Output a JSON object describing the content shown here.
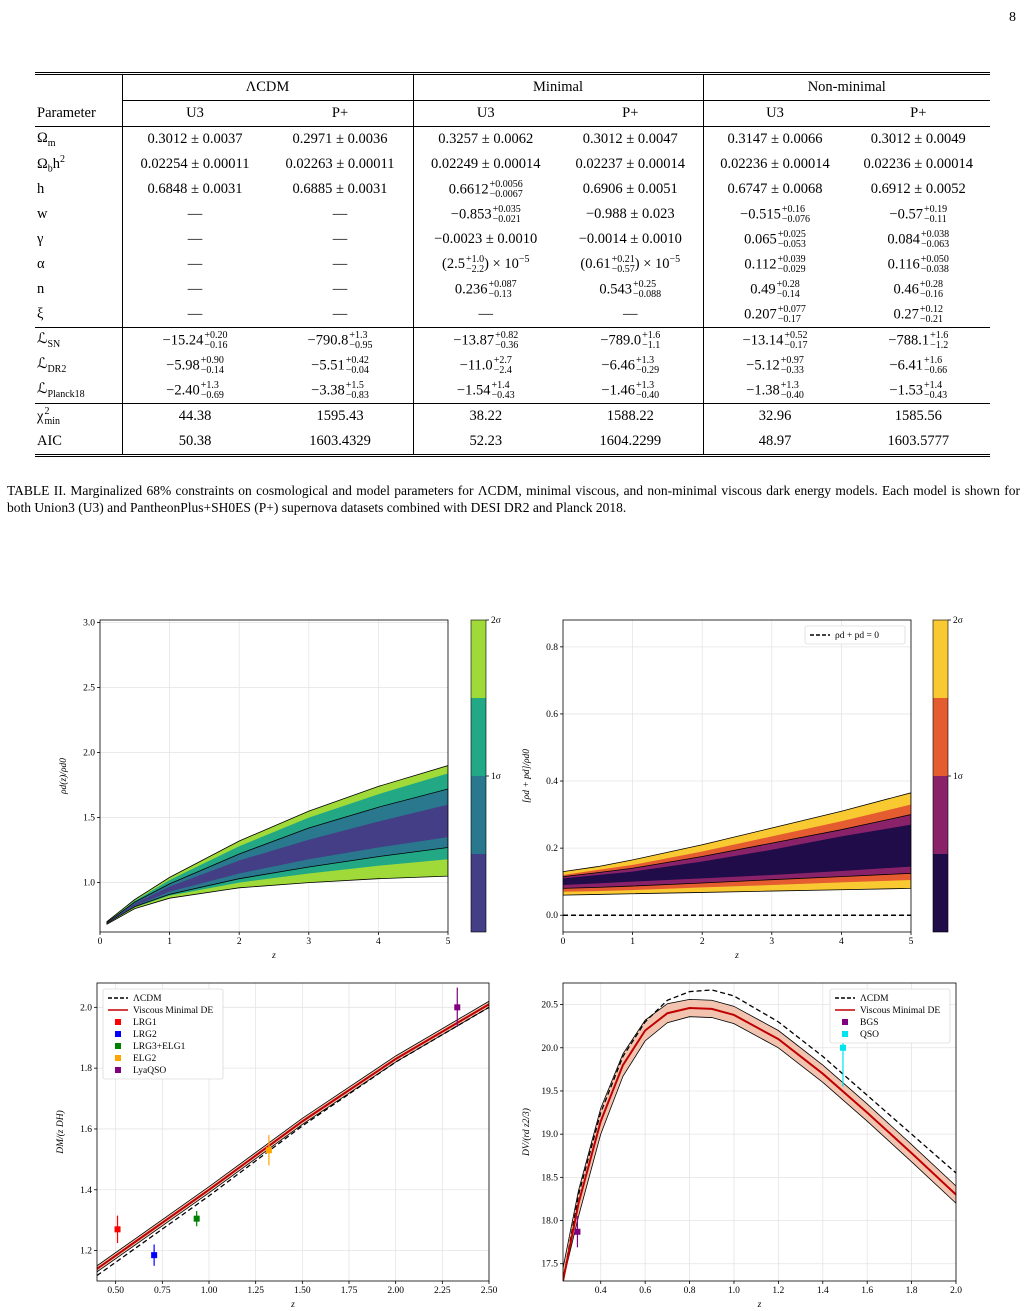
{
  "page_number": "8",
  "table": {
    "groups": [
      "ΛCDM",
      "Minimal",
      "Non-minimal"
    ],
    "header": [
      "Parameter",
      "U3",
      "P+",
      "U3",
      "P+",
      "U3",
      "P+"
    ],
    "sections": [
      [
        [
          [
            "Ω",
            {
              "sub": "m"
            }
          ],
          "0.3012 ± 0.0037",
          "0.2971 ± 0.0036",
          "0.3257 ± 0.0062",
          "0.3012 ± 0.0047",
          "0.3147 ± 0.0066",
          "0.3012 ± 0.0049"
        ],
        [
          [
            "Ω",
            {
              "sub": "b"
            },
            "h",
            {
              "sup": "2"
            }
          ],
          "0.02254 ± 0.00011",
          "0.02263 ± 0.00011",
          "0.02249 ± 0.00014",
          "0.02237 ± 0.00014",
          "0.02236 ± 0.00014",
          "0.02236 ± 0.00014"
        ],
        [
          "h",
          "0.6848 ± 0.0031",
          "0.6885 ± 0.0031",
          [
            "0.6612",
            {
              "sup": "+0.0056",
              "sub": "−0.0067"
            }
          ],
          "0.6906 ± 0.0051",
          "0.6747 ± 0.0068",
          "0.6912 ± 0.0052"
        ],
        [
          "w",
          "—",
          "—",
          [
            "−0.853",
            {
              "sup": "+0.035",
              "sub": "−0.021"
            }
          ],
          "−0.988 ± 0.023",
          [
            "−0.515",
            {
              "sup": "+0.16",
              "sub": "−0.076"
            }
          ],
          [
            "−0.57",
            {
              "sup": "+0.19",
              "sub": "−0.11"
            }
          ]
        ],
        [
          "γ",
          "—",
          "—",
          "−0.0023 ± 0.0010",
          "−0.0014 ± 0.0010",
          [
            "0.065",
            {
              "sup": "+0.025",
              "sub": "−0.053"
            }
          ],
          [
            "0.084",
            {
              "sup": "+0.038",
              "sub": "−0.063"
            }
          ]
        ],
        [
          "α",
          "—",
          "—",
          [
            "(2.5",
            {
              "sup": "+1.0",
              "sub": "−2.2"
            },
            ") × 10",
            {
              "sup": "−5"
            }
          ],
          [
            "(0.61",
            {
              "sup": "+0.21",
              "sub": "−0.57"
            },
            ") × 10",
            {
              "sup": "−5"
            }
          ],
          [
            "0.112",
            {
              "sup": "+0.039",
              "sub": "−0.029"
            }
          ],
          [
            "0.116",
            {
              "sup": "+0.050",
              "sub": "−0.038"
            }
          ]
        ],
        [
          "n",
          "—",
          "—",
          [
            "0.236",
            {
              "sup": "+0.087",
              "sub": "−0.13"
            }
          ],
          [
            "0.543",
            {
              "sup": "+0.25",
              "sub": "−0.088"
            }
          ],
          [
            "0.49",
            {
              "sup": "+0.28",
              "sub": "−0.14"
            }
          ],
          [
            "0.46",
            {
              "sup": "+0.28",
              "sub": "−0.16"
            }
          ]
        ],
        [
          "ξ",
          "—",
          "—",
          "—",
          "—",
          [
            "0.207",
            {
              "sup": "+0.077",
              "sub": "−0.17"
            }
          ],
          [
            "0.27",
            {
              "sup": "+0.12",
              "sub": "−0.21"
            }
          ]
        ]
      ],
      [
        [
          [
            "ℒ",
            {
              "sub": "SN"
            }
          ],
          [
            "−15.24",
            {
              "sup": "+0.20",
              "sub": "−0.16"
            }
          ],
          [
            "−790.8",
            {
              "sup": "+1.3",
              "sub": "−0.95"
            }
          ],
          [
            "−13.87",
            {
              "sup": "+0.82",
              "sub": "−0.36"
            }
          ],
          [
            "−789.0",
            {
              "sup": "+1.6",
              "sub": "−1.1"
            }
          ],
          [
            "−13.14",
            {
              "sup": "+0.52",
              "sub": "−0.17"
            }
          ],
          [
            "−788.1",
            {
              "sup": "+1.6",
              "sub": "−1.2"
            }
          ]
        ],
        [
          [
            "ℒ",
            {
              "sub": "DR2"
            }
          ],
          [
            "−5.98",
            {
              "sup": "+0.90",
              "sub": "−0.14"
            }
          ],
          [
            "−5.51",
            {
              "sup": "+0.42",
              "sub": "−0.04"
            }
          ],
          [
            "−11.0",
            {
              "sup": "+2.7",
              "sub": "−2.4"
            }
          ],
          [
            "−6.46",
            {
              "sup": "+1.3",
              "sub": "−0.29"
            }
          ],
          [
            "−5.12",
            {
              "sup": "+0.97",
              "sub": "−0.33"
            }
          ],
          [
            "−6.41",
            {
              "sup": "+1.6",
              "sub": "−0.66"
            }
          ]
        ],
        [
          [
            "ℒ",
            {
              "sub": "Planck18"
            }
          ],
          [
            "−2.40",
            {
              "sup": "+1.3",
              "sub": "−0.69"
            }
          ],
          [
            "−3.38",
            {
              "sup": "+1.5",
              "sub": "−0.83"
            }
          ],
          [
            "−1.54",
            {
              "sup": "+1.4",
              "sub": "−0.43"
            }
          ],
          [
            "−1.46",
            {
              "sup": "+1.3",
              "sub": "−0.40"
            }
          ],
          [
            "−1.38",
            {
              "sup": "+1.3",
              "sub": "−0.40"
            }
          ],
          [
            "−1.53",
            {
              "sup": "+1.4",
              "sub": "−0.43"
            }
          ]
        ]
      ],
      [
        [
          [
            "χ",
            {
              "sup": "2",
              "sub": "min"
            }
          ],
          "44.38",
          "1595.43",
          "38.22",
          "1588.22",
          "32.96",
          "1585.56"
        ],
        [
          "AIC",
          "50.38",
          "1603.4329",
          "52.23",
          "1604.2299",
          "48.97",
          "1603.5777"
        ]
      ]
    ]
  },
  "caption": "TABLE II. Marginalized 68% constraints on cosmological and model parameters for ΛCDM, minimal viscous, and non-minimal viscous dark energy models. Each model is shown for both Union3 (U3) and PantheonPlus+SH0ES (P+) supernova datasets combined with DESI DR2 and Planck 2018.",
  "chart_data": [
    {
      "type": "fan",
      "xlabel": "z",
      "ylabel": "ρd(z)/ρd0",
      "grid": true,
      "xlim": [
        0,
        5
      ],
      "xticks": [
        0,
        1,
        2,
        3,
        4,
        5
      ],
      "ylim": [
        0.62,
        3.02
      ],
      "yticks": [
        {
          "value": 1,
          "label": "1.0"
        },
        {
          "value": 1.5,
          "label": "1.5"
        },
        {
          "value": 2,
          "label": "2.0"
        },
        {
          "value": 2.5,
          "label": "2.5"
        },
        {
          "value": 3,
          "label": "3.0"
        }
      ],
      "x": [
        0.1,
        0.5,
        1,
        2,
        3,
        4,
        5
      ],
      "bands": [
        {
          "color": "#a0da39",
          "lower": [
            0.68,
            0.8,
            0.88,
            0.96,
            1.0,
            1.03,
            1.05
          ],
          "upper": [
            0.7,
            0.87,
            1.04,
            1.32,
            1.55,
            1.74,
            1.9
          ]
        },
        {
          "color": "#22a884",
          "lower": [
            0.685,
            0.81,
            0.9,
            1.0,
            1.07,
            1.13,
            1.18
          ],
          "upper": [
            0.695,
            0.86,
            1.02,
            1.28,
            1.5,
            1.68,
            1.84
          ]
        },
        {
          "color": "#2a788e",
          "lower": [
            0.687,
            0.815,
            0.91,
            1.03,
            1.12,
            1.2,
            1.27
          ],
          "upper": [
            0.693,
            0.85,
            0.99,
            1.22,
            1.42,
            1.58,
            1.72
          ]
        },
        {
          "color": "#433e85",
          "lower": [
            0.689,
            0.82,
            0.93,
            1.07,
            1.18,
            1.27,
            1.35
          ],
          "upper": [
            0.692,
            0.84,
            0.97,
            1.17,
            1.33,
            1.47,
            1.6
          ]
        }
      ],
      "colorbar": {
        "colors": [
          "#433e85",
          "#2a788e",
          "#22a884",
          "#a0da39"
        ],
        "lim": [
          0,
          2
        ],
        "ticks": [
          {
            "value": 1,
            "label": "1σ"
          },
          {
            "value": 2,
            "label": "2σ"
          }
        ]
      }
    },
    {
      "type": "fan",
      "xlabel": "z",
      "ylabel": "[ρd + pd]/ρd0",
      "grid": true,
      "legend": "upper right",
      "xlim": [
        0,
        5
      ],
      "xticks": [
        0,
        1,
        2,
        3,
        4,
        5
      ],
      "ylim": [
        -0.05,
        0.88
      ],
      "yticks": [
        {
          "value": 0,
          "label": "0.0"
        },
        {
          "value": 0.2,
          "label": "0.2"
        },
        {
          "value": 0.4,
          "label": "0.4"
        },
        {
          "value": 0.6,
          "label": "0.6"
        },
        {
          "value": 0.8,
          "label": "0.8"
        }
      ],
      "x": [
        0,
        0.5,
        1,
        2,
        3,
        4,
        5
      ],
      "bands": [
        {
          "color": "#f9c932",
          "lower": [
            0.06,
            0.062,
            0.064,
            0.068,
            0.072,
            0.076,
            0.08
          ],
          "upper": [
            0.13,
            0.145,
            0.165,
            0.21,
            0.26,
            0.31,
            0.365
          ]
        },
        {
          "color": "#e55c30",
          "lower": [
            0.07,
            0.072,
            0.075,
            0.083,
            0.09,
            0.098,
            0.105
          ],
          "upper": [
            0.12,
            0.135,
            0.15,
            0.19,
            0.235,
            0.28,
            0.33
          ]
        },
        {
          "color": "#8a226a",
          "lower": [
            0.08,
            0.083,
            0.087,
            0.096,
            0.106,
            0.115,
            0.125
          ],
          "upper": [
            0.115,
            0.127,
            0.14,
            0.175,
            0.215,
            0.255,
            0.3
          ]
        },
        {
          "color": "#1f0c48",
          "lower": [
            0.09,
            0.095,
            0.1,
            0.11,
            0.12,
            0.132,
            0.145
          ],
          "upper": [
            0.11,
            0.12,
            0.13,
            0.16,
            0.195,
            0.235,
            0.27
          ]
        }
      ],
      "hline": {
        "value": 0,
        "label": "ρd + pd = 0",
        "color": "#000000"
      },
      "colorbar": {
        "colors": [
          "#1f0c48",
          "#8a226a",
          "#e55c30",
          "#f9c932"
        ],
        "lim": [
          0,
          2
        ],
        "ticks": [
          {
            "value": 1,
            "label": "1σ"
          },
          {
            "value": 2,
            "label": "2σ"
          }
        ]
      }
    },
    {
      "type": "line",
      "xlabel": "z",
      "ylabel": "DM/(z DH)",
      "grid": true,
      "legend": "upper left",
      "xlim": [
        0.4,
        2.5
      ],
      "xticks": [
        {
          "value": 0.5,
          "label": "0.50"
        },
        {
          "value": 0.75,
          "label": "0.75"
        },
        {
          "value": 1,
          "label": "1.00"
        },
        {
          "value": 1.25,
          "label": "1.25"
        },
        {
          "value": 1.5,
          "label": "1.50"
        },
        {
          "value": 1.75,
          "label": "1.75"
        },
        {
          "value": 2,
          "label": "2.00"
        },
        {
          "value": 2.25,
          "label": "2.25"
        },
        {
          "value": 2.5,
          "label": "2.50"
        }
      ],
      "ylim": [
        1.1,
        2.08
      ],
      "yticks": [
        {
          "value": 1.2,
          "label": "1.2"
        },
        {
          "value": 1.4,
          "label": "1.4"
        },
        {
          "value": 1.6,
          "label": "1.6"
        },
        {
          "value": 1.8,
          "label": "1.8"
        },
        {
          "value": 2,
          "label": "2.0"
        }
      ],
      "series": [
        {
          "name": "ΛCDM",
          "color": "#000000",
          "dash": true,
          "x": [
            0.4,
            1,
            1.5,
            2,
            2.5
          ],
          "values": [
            1.118,
            1.38,
            1.61,
            1.82,
            2.0
          ]
        },
        {
          "name": "Viscous Minimal DE",
          "color": "#c00000",
          "band_color": "#f2c4b0",
          "x": [
            0.4,
            1,
            1.5,
            2,
            2.5
          ],
          "values": [
            1.14,
            1.4,
            1.625,
            1.83,
            2.01
          ],
          "lower": [
            1.13,
            1.39,
            1.615,
            1.82,
            2.0
          ],
          "upper": [
            1.15,
            1.41,
            1.635,
            1.84,
            2.02
          ]
        }
      ],
      "points": [
        {
          "name": "LRG1",
          "color": "#ff0000",
          "x": 0.51,
          "y": 1.27,
          "err": 0.045
        },
        {
          "name": "LRG2",
          "color": "#0000ff",
          "x": 0.706,
          "y": 1.185,
          "err": 0.035
        },
        {
          "name": "LRG3+ELG1",
          "color": "#008000",
          "x": 0.934,
          "y": 1.305,
          "err": 0.025
        },
        {
          "name": "ELG2",
          "color": "#ffa500",
          "x": 1.321,
          "y": 1.53,
          "err": 0.05
        },
        {
          "name": "LyaQSO",
          "color": "#800080",
          "x": 2.33,
          "y": 2.0,
          "err": 0.065
        }
      ]
    },
    {
      "type": "line",
      "xlabel": "z",
      "ylabel": "DV/(rd z2/3)",
      "grid": true,
      "legend": "upper right",
      "xlim": [
        0.23,
        2.0
      ],
      "xticks": [
        0.4,
        0.6,
        0.8,
        {
          "value": 1,
          "label": "1.0"
        },
        1.2,
        1.4,
        1.6,
        1.8,
        {
          "value": 2,
          "label": "2.0"
        }
      ],
      "ylim": [
        17.3,
        20.75
      ],
      "yticks": [
        17.5,
        {
          "value": 18,
          "label": "18.0"
        },
        18.5,
        {
          "value": 19,
          "label": "19.0"
        },
        19.5,
        {
          "value": 20,
          "label": "20.0"
        },
        20.5
      ],
      "series": [
        {
          "name": "ΛCDM",
          "color": "#000000",
          "dash": true,
          "x": [
            0.23,
            0.3,
            0.4,
            0.5,
            0.6,
            0.7,
            0.8,
            0.9,
            1.0,
            1.2,
            1.4,
            1.6,
            1.8,
            2.0
          ],
          "values": [
            17.3,
            18.3,
            19.25,
            19.9,
            20.3,
            20.55,
            20.65,
            20.67,
            20.6,
            20.3,
            19.9,
            19.45,
            19.0,
            18.55
          ]
        },
        {
          "name": "Viscous Minimal DE",
          "color": "#c00000",
          "band_color": "#f2c4b0",
          "x": [
            0.23,
            0.3,
            0.4,
            0.5,
            0.6,
            0.7,
            0.8,
            0.9,
            1.0,
            1.2,
            1.4,
            1.6,
            1.8,
            2.0
          ],
          "values": [
            17.3,
            18.2,
            19.15,
            19.8,
            20.2,
            20.4,
            20.46,
            20.45,
            20.38,
            20.1,
            19.7,
            19.25,
            18.78,
            18.3
          ],
          "lower": [
            17.3,
            18.05,
            19.0,
            19.67,
            20.08,
            20.29,
            20.36,
            20.35,
            20.28,
            20.0,
            19.6,
            19.15,
            18.68,
            18.2
          ],
          "upper": [
            17.45,
            18.35,
            19.3,
            19.93,
            20.32,
            20.51,
            20.56,
            20.55,
            20.48,
            20.2,
            19.8,
            19.35,
            18.88,
            18.4
          ]
        }
      ],
      "points": [
        {
          "name": "BGS",
          "color": "#800080",
          "x": 0.295,
          "y": 17.87,
          "err": 0.18
        },
        {
          "name": "QSO",
          "color": "#00e5ee",
          "x": 1.491,
          "y": 20.0,
          "err": 0.45
        }
      ]
    }
  ]
}
